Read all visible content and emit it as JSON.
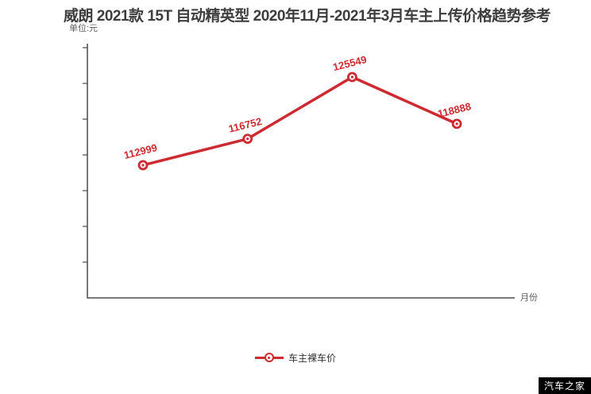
{
  "title": "威朗 2021款 15T 自动精英型 2020年11月-2021年3月车主上传价格趋势参考",
  "unit_label": "单位:元",
  "x_axis_label": "月份",
  "legend": {
    "label": "车主裸车价"
  },
  "watermark": "汽车之家",
  "colors": {
    "line": "#cc2b31",
    "axis": "#4a4a4a",
    "title": "#3d3d3d"
  },
  "chart_data": {
    "type": "line",
    "title": "威朗 2021款 15T 自动精英型 2020年11月-2021年3月车主上传价格趋势参考",
    "ylabel": "单位:元",
    "xlabel": "月份",
    "x_tick_labels_visible": false,
    "series": [
      {
        "name": "车主裸车价",
        "values": [
          112999,
          116752,
          125549,
          118888
        ]
      }
    ],
    "point_labels": [
      "112999",
      "116752",
      "125549",
      "118888"
    ],
    "ylim": [
      94100,
      130300
    ],
    "grid": false,
    "legend_position": "bottom-center",
    "marker": "open-circle"
  }
}
